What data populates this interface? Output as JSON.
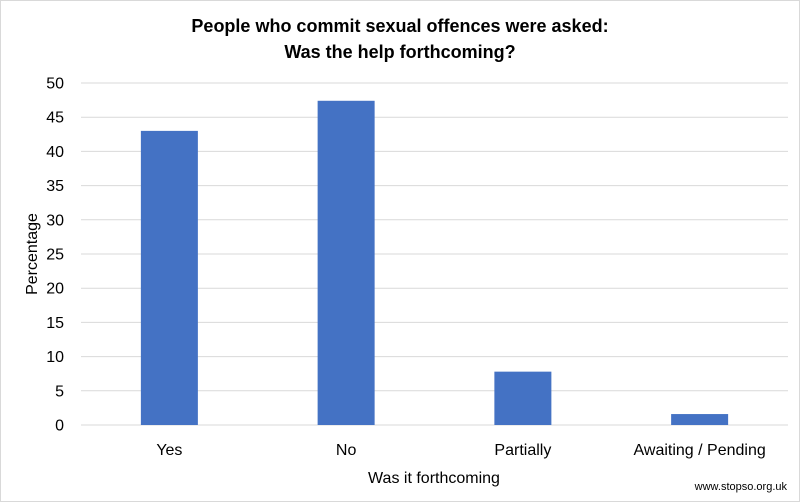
{
  "chart_data": {
    "type": "bar",
    "title_lines": [
      "People who commit sexual offences were asked:",
      "Was the help forthcoming?"
    ],
    "xlabel": "Was it forthcoming",
    "ylabel": "Percentage",
    "categories": [
      "Yes",
      "No",
      "Partially",
      "Awaiting / Pending"
    ],
    "values": [
      43,
      47.4,
      7.8,
      1.6
    ],
    "ylim": [
      0,
      50
    ],
    "yticks": [
      0,
      5,
      10,
      15,
      20,
      25,
      30,
      35,
      40,
      45,
      50
    ],
    "grid": true,
    "legend": "none",
    "bar_color": "#4472c4",
    "grid_color": "#d9d9d9"
  },
  "source": "www.stopso.org.uk"
}
